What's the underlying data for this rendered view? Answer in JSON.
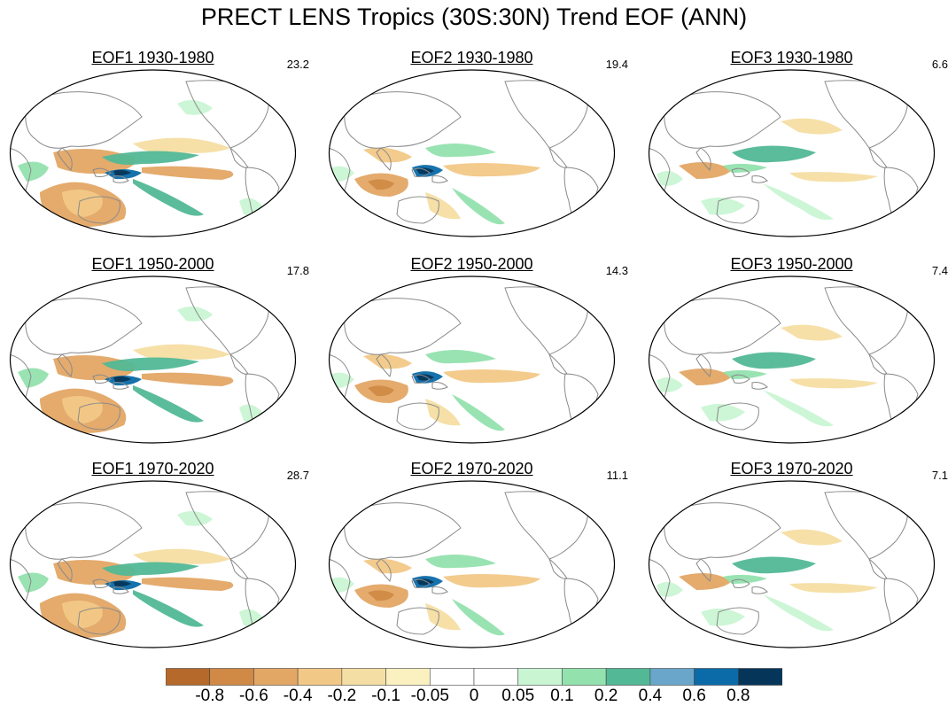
{
  "title": "PRECT LENS Tropics (30S:30N) Trend EOF (ANN)",
  "panels": [
    {
      "label": "EOF1 1930-1980",
      "variance": "23.2",
      "mode": 1
    },
    {
      "label": "EOF2 1930-1980",
      "variance": "19.4",
      "mode": 2
    },
    {
      "label": "EOF3 1930-1980",
      "variance": "6.6",
      "mode": 3
    },
    {
      "label": "EOF1 1950-2000",
      "variance": "17.8",
      "mode": 1
    },
    {
      "label": "EOF2 1950-2000",
      "variance": "14.3",
      "mode": 2
    },
    {
      "label": "EOF3 1950-2000",
      "variance": "7.4",
      "mode": 3
    },
    {
      "label": "EOF1 1970-2020",
      "variance": "28.7",
      "mode": 1
    },
    {
      "label": "EOF2 1970-2020",
      "variance": "11.1",
      "mode": 2
    },
    {
      "label": "EOF3 1970-2020",
      "variance": "7.1",
      "mode": 3
    }
  ],
  "colorbar": {
    "labels": [
      "-0.8",
      "-0.6",
      "-0.4",
      "-0.2",
      "-0.1",
      "-0.05",
      "0",
      "0.05",
      "0.1",
      "0.2",
      "0.4",
      "0.6",
      "0.8"
    ],
    "colors": [
      "#b5692b",
      "#d08a46",
      "#e3a765",
      "#f2c887",
      "#f5dea3",
      "#fbf1c0",
      "#ffffff",
      "#ffffff",
      "#c9f5d3",
      "#93e2ae",
      "#52b896",
      "#6aa6c9",
      "#0b6aa8",
      "#05365a"
    ]
  },
  "colors": {
    "coast": "#8a8a8a",
    "outline": "#000000"
  }
}
